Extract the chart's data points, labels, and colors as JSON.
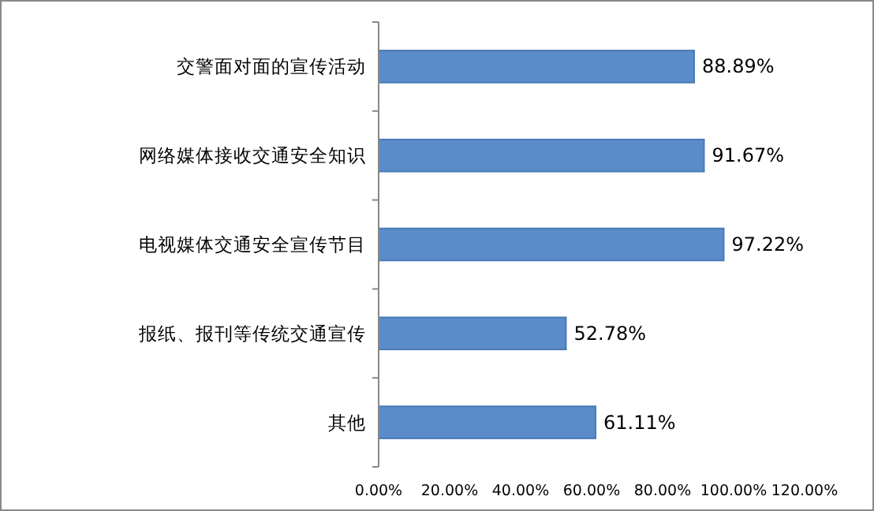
{
  "chart_data": {
    "type": "bar",
    "orientation": "horizontal",
    "categories": [
      "交警面对面的宣传活动",
      "网络媒体接收交通安全知识",
      "电视媒体交通安全宣传节目",
      "报纸、报刊等传统交通宣传",
      "其他"
    ],
    "values": [
      88.89,
      91.67,
      97.22,
      52.78,
      61.11
    ],
    "value_labels": [
      "88.89%",
      "91.67%",
      "97.22%",
      "52.78%",
      "61.11%"
    ],
    "color": "#5a8ccc",
    "xlim": [
      0,
      120
    ],
    "xticks": [
      {
        "value": 0,
        "label": "0.00%"
      },
      {
        "value": 20,
        "label": "20.00%"
      },
      {
        "value": 40,
        "label": "40.00%"
      },
      {
        "value": 60,
        "label": "60.00%"
      },
      {
        "value": 80,
        "label": "80.00%"
      },
      {
        "value": 100,
        "label": "100.00%"
      },
      {
        "value": 120,
        "label": "120.00%"
      }
    ],
    "grid": false
  }
}
